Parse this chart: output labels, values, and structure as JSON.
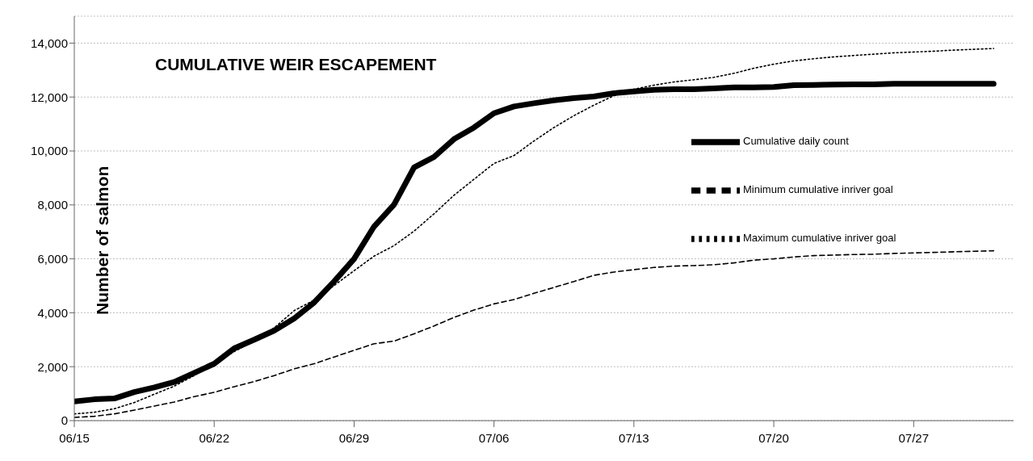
{
  "chart_data": {
    "type": "line",
    "title": "CUMULATIVE WEIR ESCAPEMENT",
    "ylabel": "Number of salmon",
    "x": [
      "--06-15",
      "--06-16",
      "--06-17",
      "--06-18",
      "--06-19",
      "--06-20",
      "--06-21",
      "--06-22",
      "--06-23",
      "--06-24",
      "--06-25",
      "--06-26",
      "--06-27",
      "--06-28",
      "--06-29",
      "--06-30",
      "--07-01",
      "--07-02",
      "--07-03",
      "--07-04",
      "--07-05",
      "--07-06",
      "--07-07",
      "--07-08",
      "--07-09",
      "--07-10",
      "--07-11",
      "--07-12",
      "--07-13",
      "--07-14",
      "--07-15",
      "--07-16",
      "--07-17",
      "--07-18",
      "--07-19",
      "--07-20",
      "--07-21",
      "--07-22",
      "--07-23",
      "--07-24",
      "--07-25",
      "--07-26",
      "--07-27",
      "--07-28",
      "--07-29",
      "--07-30",
      "--07-31"
    ],
    "series": [
      {
        "name": "Cumulative daily count",
        "color": "#000000",
        "line_style": "solid",
        "values": [
          710,
          790,
          820,
          1060,
          1230,
          1430,
          1770,
          2110,
          2680,
          3000,
          3340,
          3790,
          4380,
          5160,
          6000,
          7200,
          8010,
          9390,
          9780,
          10440,
          10870,
          11400,
          11650,
          11770,
          11880,
          11960,
          12020,
          12140,
          12210,
          12270,
          12290,
          12290,
          12320,
          12360,
          12360,
          12370,
          12440,
          12450,
          12460,
          12470,
          12470,
          12490,
          12490,
          12490,
          12490,
          12490,
          12490
        ]
      },
      {
        "name": "Minimum cumulative inriver goal",
        "color": "#000000",
        "line_style": "dashed",
        "values": [
          120,
          160,
          250,
          390,
          540,
          690,
          890,
          1050,
          1260,
          1450,
          1670,
          1920,
          2110,
          2360,
          2610,
          2850,
          2950,
          3220,
          3510,
          3830,
          4100,
          4330,
          4490,
          4720,
          4940,
          5160,
          5390,
          5510,
          5600,
          5680,
          5730,
          5750,
          5780,
          5850,
          5950,
          6000,
          6070,
          6120,
          6140,
          6160,
          6170,
          6200,
          6220,
          6240,
          6260,
          6280,
          6300
        ]
      },
      {
        "name": "Maximum cumulative inriver goal",
        "color": "#000000",
        "line_style": "dotted",
        "values": [
          250,
          310,
          440,
          670,
          980,
          1280,
          1670,
          2160,
          2560,
          2950,
          3440,
          4080,
          4470,
          5010,
          5560,
          6100,
          6490,
          7030,
          7670,
          8360,
          8950,
          9540,
          9830,
          10370,
          10870,
          11310,
          11700,
          12050,
          12290,
          12440,
          12560,
          12640,
          12730,
          12880,
          13070,
          13220,
          13340,
          13420,
          13490,
          13540,
          13590,
          13640,
          13670,
          13700,
          13740,
          13770,
          13800
        ]
      }
    ],
    "xlim": [
      "--06-15",
      "--08-01"
    ],
    "xticks": [
      {
        "value": "--06-15",
        "label": "06/15"
      },
      {
        "value": "--06-22",
        "label": "06/22"
      },
      {
        "value": "--06-29",
        "label": "06/29"
      },
      {
        "value": "--07-06",
        "label": "07/06"
      },
      {
        "value": "--07-13",
        "label": "07/13"
      },
      {
        "value": "--07-20",
        "label": "07/20"
      },
      {
        "value": "--07-27",
        "label": "07/27"
      }
    ],
    "ylim": [
      0,
      15000
    ],
    "yticks": [
      0,
      {
        "value": 2000,
        "label": "2,000"
      },
      {
        "value": 4000,
        "label": "4,000"
      },
      {
        "value": 6000,
        "label": "6,000"
      },
      {
        "value": 8000,
        "label": "8,000"
      },
      {
        "value": 10000,
        "label": "10,000"
      },
      {
        "value": 12000,
        "label": "12,000"
      },
      {
        "value": 14000,
        "label": "14,000"
      }
    ],
    "grid": "y",
    "legend": "right"
  }
}
